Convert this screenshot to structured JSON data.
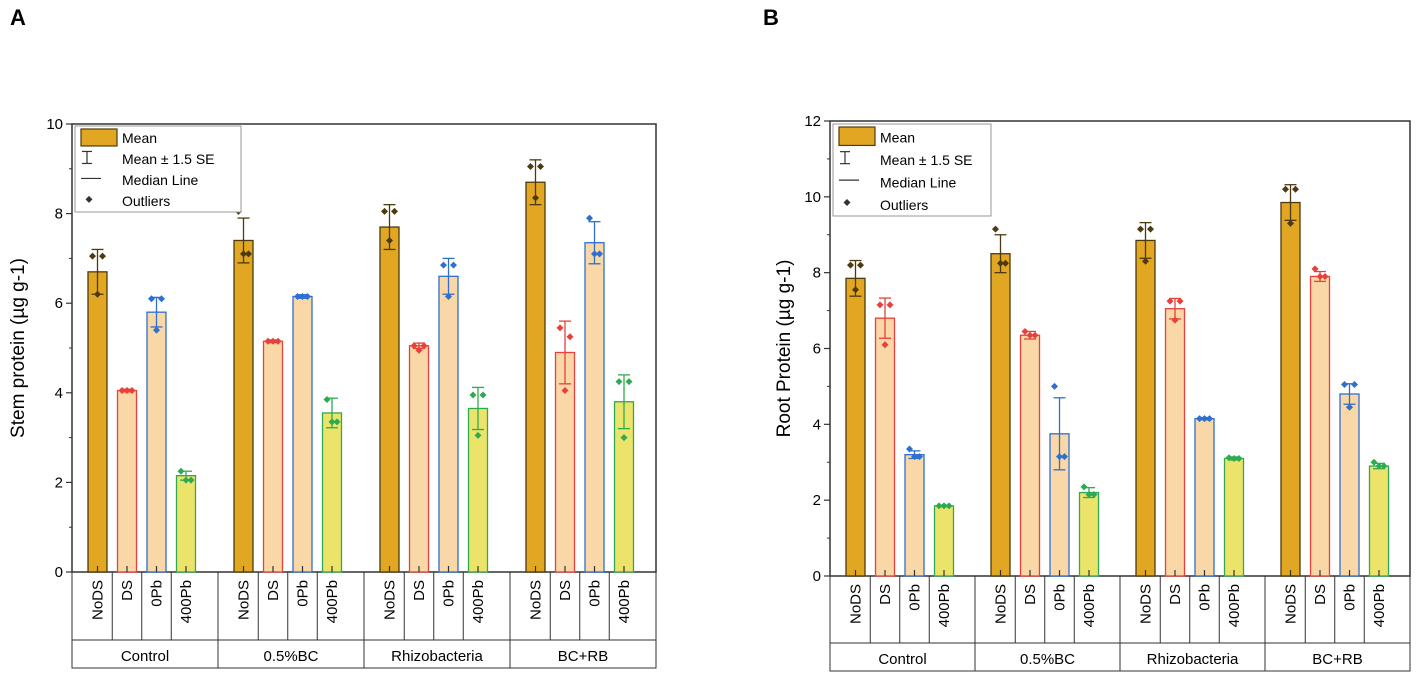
{
  "chart_data": [
    {
      "panel": "A",
      "type": "bar",
      "ylabel": "Stem protein  (µg g-1)",
      "ylim": [
        0,
        10
      ],
      "yticks": [
        0,
        2,
        4,
        6,
        8,
        10
      ],
      "groups": [
        "Control",
        "0.5%BC",
        "Rhizobacteria",
        "BC+RB"
      ],
      "categories": [
        "NoDS",
        "DS",
        "0Pb",
        "400Pb"
      ],
      "legend": [
        "Mean",
        "Mean ± 1.5 SE",
        "Median Line",
        "Outliers"
      ],
      "series": [
        {
          "name": "NoDS",
          "values": [
            6.7,
            7.4,
            7.7,
            8.7
          ],
          "err": [
            0.5,
            0.5,
            0.5,
            0.5
          ],
          "points": [
            [
              7.05,
              7.05,
              6.2
            ],
            [
              8.05,
              7.1,
              7.1
            ],
            [
              8.05,
              8.05,
              7.4
            ],
            [
              9.05,
              9.05,
              8.35
            ]
          ]
        },
        {
          "name": "DS",
          "values": [
            4.05,
            5.15,
            5.05,
            4.9
          ],
          "err": [
            0.03,
            0.03,
            0.06,
            0.7
          ],
          "points": [
            [
              4.05,
              4.05,
              4.05
            ],
            [
              5.15,
              5.15,
              5.15
            ],
            [
              5.05,
              5.05,
              4.95
            ],
            [
              5.45,
              5.25,
              4.05
            ]
          ]
        },
        {
          "name": "0Pb",
          "values": [
            5.8,
            6.15,
            6.6,
            7.35
          ],
          "err": [
            0.33,
            0.04,
            0.4,
            0.47
          ],
          "points": [
            [
              6.1,
              6.1,
              5.4
            ],
            [
              6.15,
              6.15,
              6.15
            ],
            [
              6.85,
              6.85,
              6.15
            ],
            [
              7.9,
              7.1,
              7.1
            ]
          ]
        },
        {
          "name": "400Pb",
          "values": [
            2.15,
            3.55,
            3.65,
            3.8
          ],
          "err": [
            0.1,
            0.33,
            0.47,
            0.6
          ],
          "points": [
            [
              2.25,
              2.05,
              2.05
            ],
            [
              3.85,
              3.35,
              3.35
            ],
            [
              3.95,
              3.95,
              3.05
            ],
            [
              4.25,
              4.25,
              3.0
            ]
          ]
        }
      ]
    },
    {
      "panel": "B",
      "type": "bar",
      "ylabel": "Root Protein (µg g-1)",
      "ylim": [
        0,
        12
      ],
      "yticks": [
        0,
        2,
        4,
        6,
        8,
        10,
        12
      ],
      "groups": [
        "Control",
        "0.5%BC",
        "Rhizobacteria",
        "BC+RB"
      ],
      "categories": [
        "NoDS",
        "DS",
        "0Pb",
        "400Pb"
      ],
      "legend": [
        "Mean",
        "Mean ± 1.5 SE",
        "Median Line",
        "Outliers"
      ],
      "series": [
        {
          "name": "NoDS",
          "values": [
            7.85,
            8.5,
            8.85,
            9.85
          ],
          "err": [
            0.47,
            0.5,
            0.47,
            0.47
          ],
          "points": [
            [
              8.2,
              8.2,
              7.55
            ],
            [
              9.15,
              8.25,
              8.25
            ],
            [
              9.15,
              9.15,
              8.3
            ],
            [
              10.2,
              10.2,
              9.3
            ]
          ]
        },
        {
          "name": "DS",
          "values": [
            6.8,
            6.35,
            7.05,
            7.9
          ],
          "err": [
            0.53,
            0.1,
            0.27,
            0.13
          ],
          "points": [
            [
              7.15,
              7.15,
              6.1
            ],
            [
              6.45,
              6.35,
              6.35
            ],
            [
              7.25,
              7.25,
              6.75
            ],
            [
              8.1,
              7.9,
              7.9
            ]
          ]
        },
        {
          "name": "0Pb",
          "values": [
            3.2,
            3.75,
            4.15,
            4.8
          ],
          "err": [
            0.1,
            0.95,
            0.03,
            0.27
          ],
          "points": [
            [
              3.35,
              3.15,
              3.15
            ],
            [
              5.0,
              3.15,
              3.15
            ],
            [
              4.15,
              4.15,
              4.15
            ],
            [
              5.05,
              5.05,
              4.45
            ]
          ]
        },
        {
          "name": "400Pb",
          "values": [
            1.85,
            2.2,
            3.1,
            2.9
          ],
          "err": [
            0.02,
            0.13,
            0.04,
            0.07
          ],
          "points": [
            [
              1.85,
              1.85,
              1.85
            ],
            [
              2.35,
              2.15,
              2.15
            ],
            [
              3.12,
              3.1,
              3.1
            ],
            [
              3.0,
              2.9,
              2.9
            ]
          ]
        }
      ]
    }
  ],
  "colors": {
    "NoDS": {
      "fill": "#E1A722",
      "stroke": "#4D3A10",
      "point": "#4D3A10"
    },
    "DS": {
      "fill": "#F9D7A6",
      "stroke": "#E8403B",
      "point": "#E8403B"
    },
    "0Pb": {
      "fill": "#F9D7A6",
      "stroke": "#2E6FD0",
      "point": "#2E6FD0"
    },
    "400Pb": {
      "fill": "#ECE46A",
      "stroke": "#2FAA52",
      "point": "#2FAA52"
    }
  }
}
